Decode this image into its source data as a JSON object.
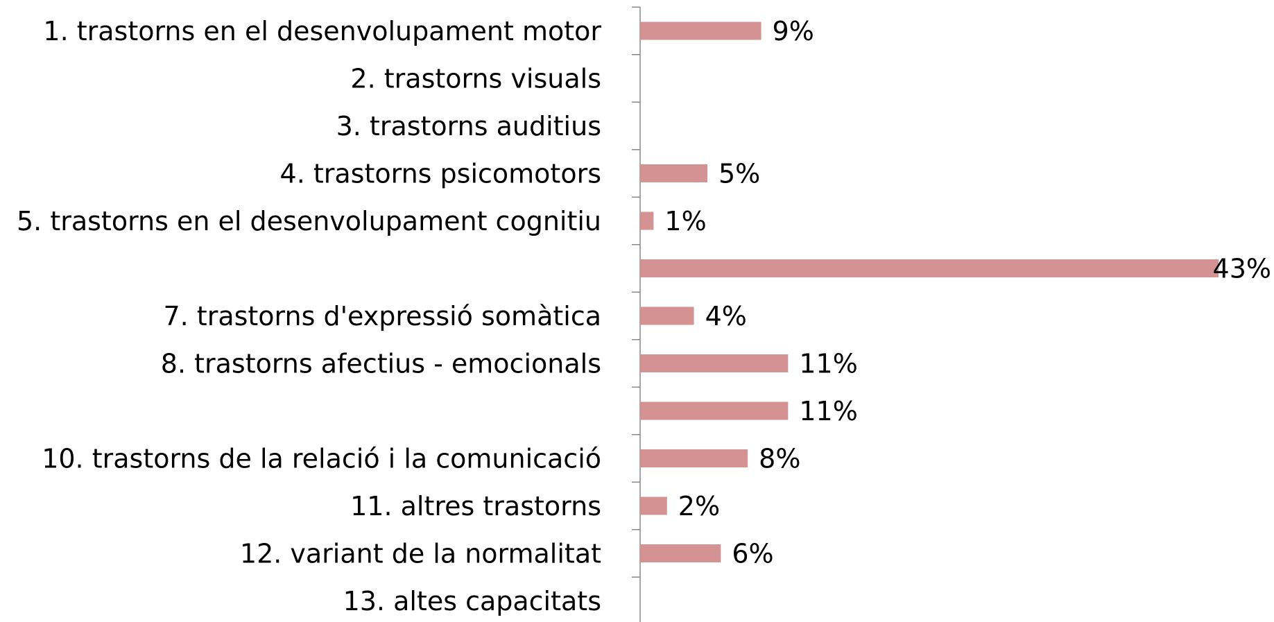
{
  "chart_data": {
    "type": "barh",
    "categories": [
      "1. trastorns en el desenvolupament motor",
      "2. trastorns visuals",
      "3. trastorns auditius",
      "4. trastorns psicomotors",
      "5. trastorns en el desenvolupament cognitiu",
      null,
      "7. trastorns d'expressió somàtica",
      "8. trastorns afectius - emocionals",
      null,
      "10. trastorns de la relació i la comunicació",
      "11. altres trastorns",
      "12. variant de la normalitat",
      "13. altes capacitats"
    ],
    "values": [
      9,
      null,
      null,
      5,
      1,
      43,
      4,
      11,
      11,
      8,
      2,
      6,
      null
    ],
    "value_labels": [
      "9%",
      null,
      null,
      "5%",
      "1%",
      "43%",
      "4%",
      "11%",
      "11%",
      "8%",
      "2%",
      "6%",
      null
    ],
    "color": "#d59292"
  }
}
